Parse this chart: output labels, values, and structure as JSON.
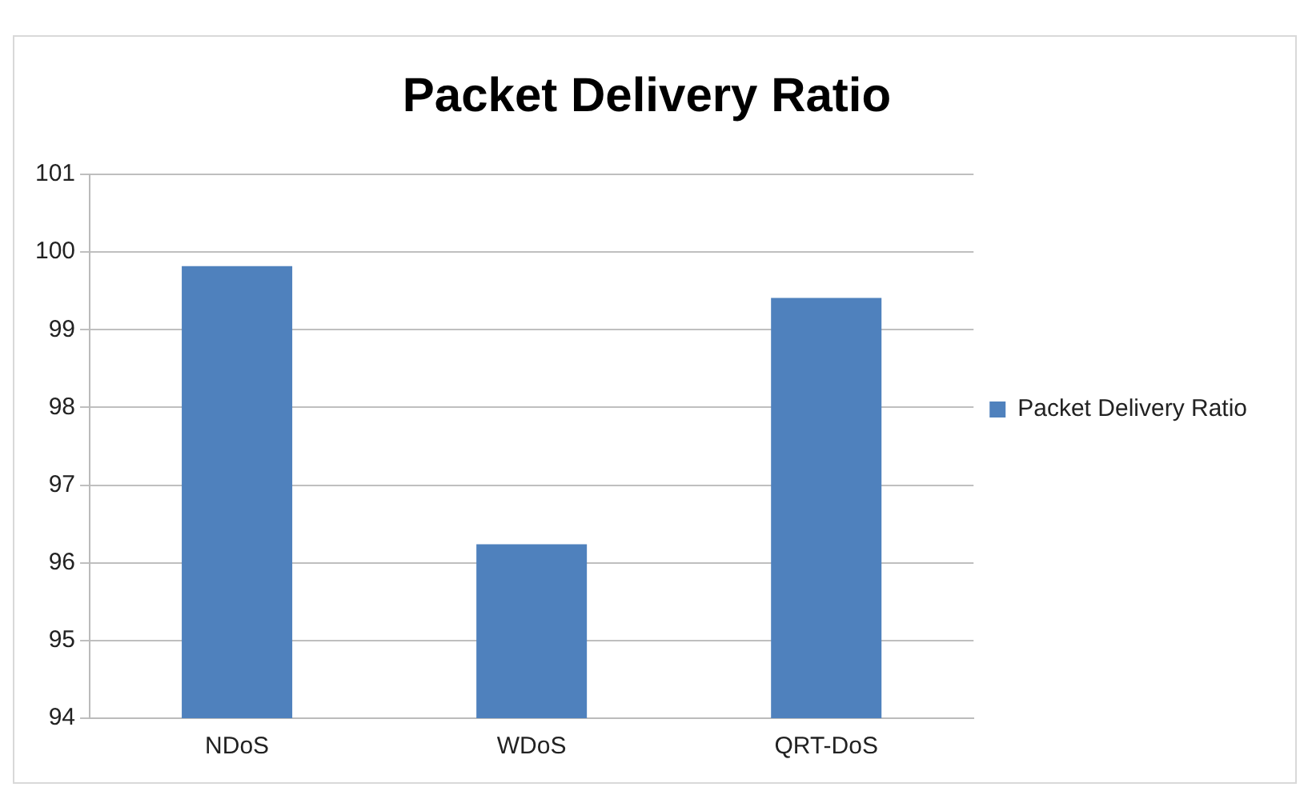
{
  "chart_data": {
    "type": "bar",
    "title": "Packet Delivery Ratio",
    "categories": [
      "NDoS",
      "WDoS",
      "QRT-DoS"
    ],
    "series": [
      {
        "name": "Packet Delivery Ratio",
        "color": "#4f81bd",
        "values": [
          99.82,
          96.24,
          99.41
        ]
      }
    ],
    "ylim": [
      94,
      101
    ],
    "yticks": [
      94,
      95,
      96,
      97,
      98,
      99,
      100,
      101
    ],
    "grid": "y",
    "legend": "right"
  }
}
